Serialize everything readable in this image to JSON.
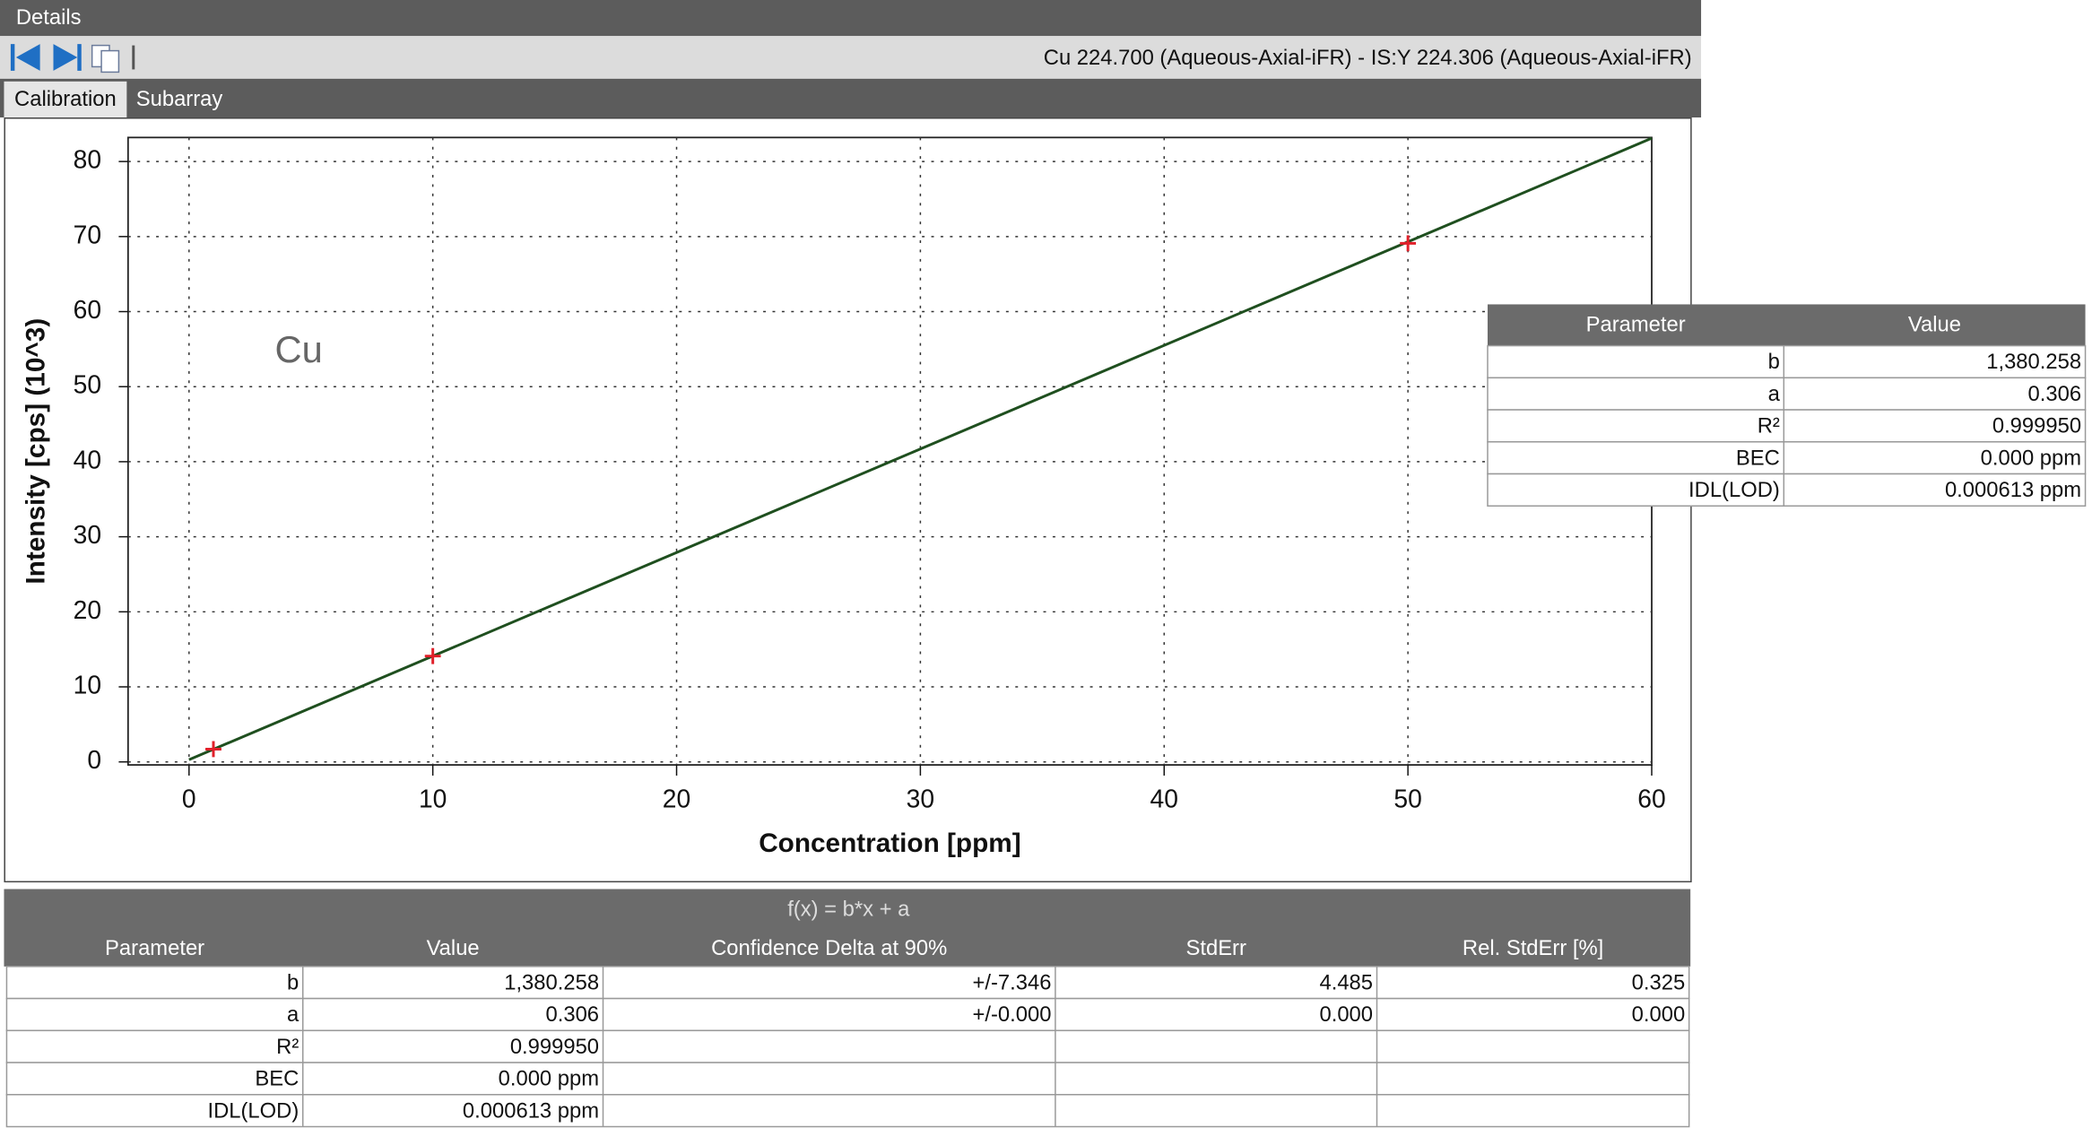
{
  "header": {
    "title": "Details"
  },
  "toolbar": {
    "title": "Cu 224.700 (Aqueous-Axial-iFR) - IS:Y 224.306 (Aqueous-Axial-iFR)"
  },
  "tabs": [
    "Calibration",
    "Subarray"
  ],
  "chart_data": {
    "type": "scatter",
    "xlabel": "Concentration [ppm]",
    "ylabel": "Intensity [cps] (10^3)",
    "annotation": "Cu",
    "xlim": [
      -2.5,
      60
    ],
    "xticks": [
      0,
      10,
      20,
      30,
      40,
      50,
      60
    ],
    "ylim": [
      -0.4,
      83.2
    ],
    "yticks": [
      0,
      10,
      20,
      30,
      40,
      50,
      60,
      70,
      80
    ],
    "grid": true,
    "series": [
      {
        "type": "line",
        "color": "#1f4f1f",
        "x": [
          0,
          60
        ],
        "values": [
          0.3,
          83.1
        ]
      },
      {
        "type": "scatter",
        "color": "#e0202a",
        "x": [
          1,
          10,
          50
        ],
        "values": [
          1.7,
          14.1,
          69.1
        ]
      }
    ]
  },
  "summary_table": {
    "columns": [
      "Parameter",
      "Value"
    ],
    "rows": [
      [
        "b",
        "1,380.258"
      ],
      [
        "a",
        "0.306"
      ],
      [
        "R²",
        "0.999950"
      ],
      [
        "BEC",
        "0.000 ppm"
      ],
      [
        "IDL(LOD)",
        "0.000613 ppm"
      ]
    ]
  },
  "fit_table": {
    "formula": "f(x) = b*x + a",
    "columns": [
      "Parameter",
      "Value",
      "Confidence Delta at 90%",
      "StdErr",
      "Rel. StdErr [%]"
    ],
    "rows": [
      [
        "b",
        "1,380.258",
        "+/-7.346",
        "4.485",
        "0.325"
      ],
      [
        "a",
        "0.306",
        "+/-0.000",
        "0.000",
        "0.000"
      ],
      [
        "R²",
        "0.999950",
        null,
        null,
        null
      ],
      [
        "BEC",
        "0.000 ppm",
        null,
        null,
        null
      ],
      [
        "IDL(LOD)",
        "0.000613 ppm",
        null,
        null,
        null
      ]
    ]
  }
}
